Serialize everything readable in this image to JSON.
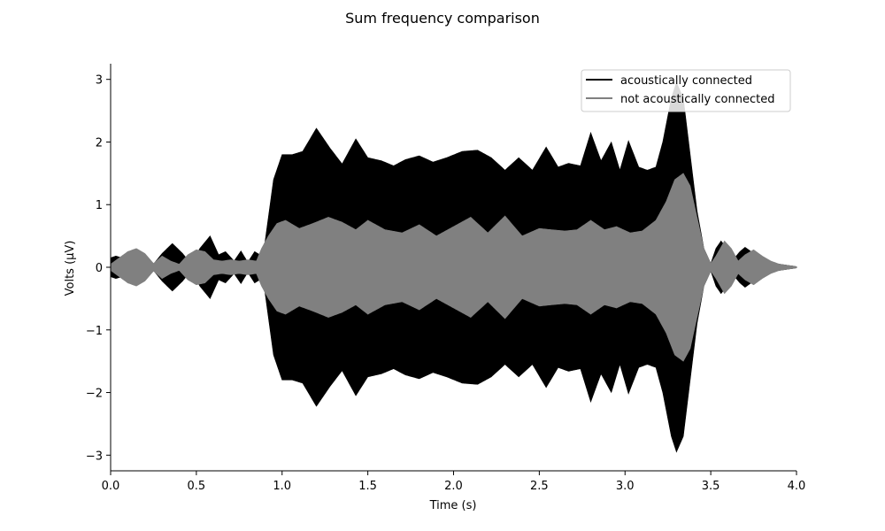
{
  "chart_data": {
    "type": "area",
    "title": "Sum frequency comparison",
    "xlabel": "Time (s)",
    "ylabel": "Volts (μV)",
    "xlim": [
      0.0,
      4.0
    ],
    "ylim": [
      -3.25,
      3.25
    ],
    "xticks": [
      0.0,
      0.5,
      1.0,
      1.5,
      2.0,
      2.5,
      3.0,
      3.5,
      4.0
    ],
    "xtick_labels": [
      "0.0",
      "0.5",
      "1.0",
      "1.5",
      "2.0",
      "2.5",
      "3.0",
      "3.5",
      "4.0"
    ],
    "yticks": [
      -3,
      -2,
      -1,
      0,
      1,
      2,
      3
    ],
    "ytick_labels": [
      "−3",
      "−2",
      "−1",
      "0",
      "1",
      "2",
      "3"
    ],
    "grid": false,
    "legend_position": "top-right",
    "series": [
      {
        "name": "acoustically connected",
        "color": "#000000",
        "envelope_x": [
          0.0,
          0.03,
          0.08,
          0.12,
          0.15,
          0.2,
          0.25,
          0.3,
          0.36,
          0.42,
          0.47,
          0.52,
          0.58,
          0.63,
          0.67,
          0.72,
          0.76,
          0.8,
          0.84,
          0.87,
          0.9,
          0.95,
          1.0,
          1.06,
          1.12,
          1.2,
          1.28,
          1.35,
          1.43,
          1.5,
          1.58,
          1.65,
          1.72,
          1.8,
          1.88,
          1.96,
          2.05,
          2.14,
          2.22,
          2.3,
          2.38,
          2.46,
          2.54,
          2.61,
          2.67,
          2.74,
          2.8,
          2.86,
          2.92,
          2.97,
          3.02,
          3.08,
          3.13,
          3.18,
          3.22,
          3.27,
          3.3,
          3.34,
          3.38,
          3.42,
          3.46,
          3.5,
          3.53,
          3.56,
          3.6,
          3.63,
          3.67,
          3.7,
          3.75,
          3.8,
          3.85,
          3.9,
          3.95,
          4.0
        ],
        "envelope": [
          0.15,
          0.18,
          0.14,
          0.2,
          0.25,
          0.2,
          0.05,
          0.22,
          0.38,
          0.22,
          0.05,
          0.3,
          0.5,
          0.2,
          0.25,
          0.1,
          0.26,
          0.08,
          0.25,
          0.2,
          0.4,
          1.4,
          1.8,
          1.8,
          1.85,
          2.22,
          1.9,
          1.65,
          2.05,
          1.75,
          1.7,
          1.62,
          1.72,
          1.78,
          1.68,
          1.75,
          1.85,
          1.87,
          1.75,
          1.55,
          1.75,
          1.55,
          1.92,
          1.6,
          1.66,
          1.62,
          2.15,
          1.7,
          2.0,
          1.55,
          2.02,
          1.6,
          1.55,
          1.6,
          2.0,
          2.7,
          2.95,
          2.7,
          1.8,
          0.9,
          0.3,
          0.06,
          0.3,
          0.42,
          0.28,
          0.12,
          0.25,
          0.32,
          0.22,
          0.12,
          0.08,
          0.05,
          0.03,
          0.01
        ]
      },
      {
        "name": "not acoustically connected",
        "color": "#808080",
        "envelope_x": [
          0.0,
          0.05,
          0.1,
          0.15,
          0.2,
          0.25,
          0.3,
          0.35,
          0.4,
          0.45,
          0.5,
          0.55,
          0.6,
          0.65,
          0.7,
          0.75,
          0.8,
          0.85,
          0.88,
          0.92,
          0.97,
          1.02,
          1.1,
          1.18,
          1.27,
          1.35,
          1.43,
          1.5,
          1.6,
          1.7,
          1.8,
          1.9,
          2.0,
          2.1,
          2.2,
          2.3,
          2.4,
          2.5,
          2.57,
          2.65,
          2.72,
          2.8,
          2.88,
          2.95,
          3.03,
          3.1,
          3.18,
          3.24,
          3.29,
          3.34,
          3.38,
          3.42,
          3.46,
          3.5,
          3.53,
          3.58,
          3.62,
          3.66,
          3.7,
          3.75,
          3.8,
          3.85,
          3.9,
          3.95,
          4.0
        ],
        "envelope": [
          0.05,
          0.15,
          0.25,
          0.3,
          0.22,
          0.06,
          0.18,
          0.1,
          0.05,
          0.2,
          0.28,
          0.25,
          0.12,
          0.1,
          0.12,
          0.1,
          0.12,
          0.1,
          0.3,
          0.5,
          0.7,
          0.75,
          0.62,
          0.7,
          0.8,
          0.72,
          0.6,
          0.75,
          0.6,
          0.55,
          0.68,
          0.5,
          0.65,
          0.8,
          0.55,
          0.82,
          0.5,
          0.62,
          0.6,
          0.58,
          0.6,
          0.75,
          0.6,
          0.65,
          0.55,
          0.58,
          0.75,
          1.05,
          1.4,
          1.5,
          1.3,
          0.8,
          0.3,
          0.06,
          0.18,
          0.42,
          0.3,
          0.1,
          0.2,
          0.28,
          0.18,
          0.1,
          0.05,
          0.03,
          0.01
        ]
      }
    ]
  }
}
